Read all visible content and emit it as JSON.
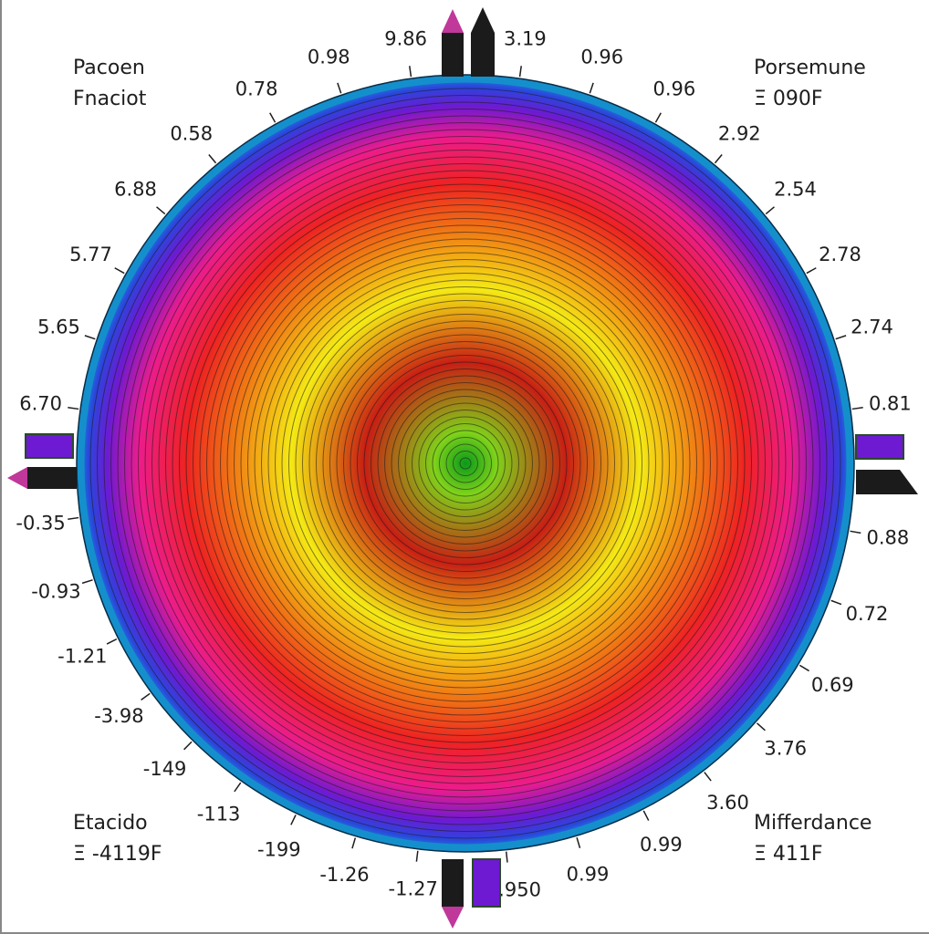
{
  "chart_data": {
    "type": "heatmap",
    "subtype": "polar-contour",
    "colormap": [
      "#0a9a1a",
      "#7fd21a",
      "#c81e14",
      "#f5ea14",
      "#f07814",
      "#ee2222",
      "#ec1c8c",
      "#6d1ad2",
      "#2a46dc",
      "#1a96d2"
    ],
    "tick_labels": {
      "top_right": [
        "3.19",
        "0.96",
        "0.96",
        "2.92",
        "2.54",
        "2.78",
        "2.74",
        "0.81"
      ],
      "bottom_right": [
        "0.88",
        "0.72",
        "0.69",
        "3.76",
        "3.60",
        "0.99",
        "0.99",
        "-3.950"
      ],
      "bottom_left": [
        "-1.27",
        "-1.26",
        "-199",
        "-113",
        "-149",
        "-3.98",
        "-1.21",
        "-0.93",
        "-0.35"
      ],
      "top_left": [
        "6.70",
        "5.65",
        "5.77",
        "6.88",
        "0.58",
        "0.78",
        "0.98",
        "9.86"
      ]
    },
    "annotations": {
      "top_left": [
        "Pacoen",
        "Fnaciot"
      ],
      "top_right": [
        "Porsemune",
        "Ξ 090F"
      ],
      "bottom_left": [
        "Etacido",
        "Ξ -4119F"
      ],
      "bottom_right": [
        "Mifferdance",
        "Ξ 411F"
      ]
    },
    "markers": [
      "top",
      "bottom",
      "left",
      "right"
    ]
  }
}
